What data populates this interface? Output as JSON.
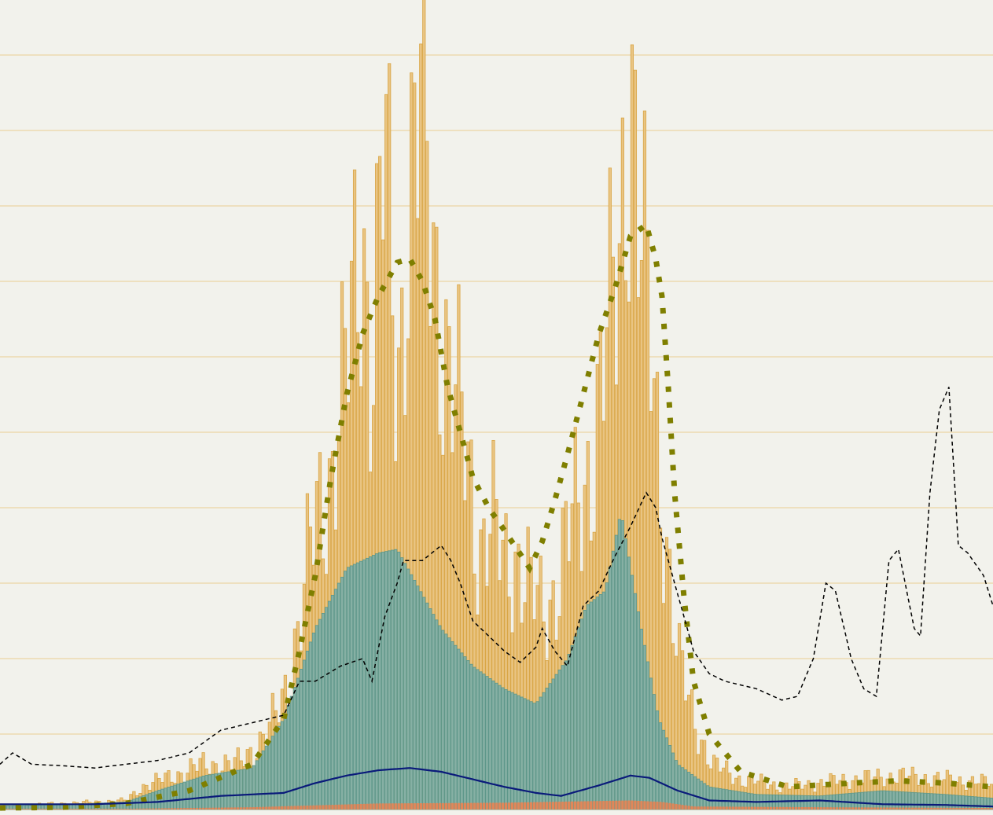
{
  "chart_data": {
    "type": "bar",
    "title": "",
    "xlabel": "",
    "ylabel": "",
    "ylim": [
      0,
      1050
    ],
    "xlim": [
      0,
      315
    ],
    "grid": true,
    "gridlines_y": [
      100,
      200,
      300,
      400,
      500,
      600,
      700,
      800,
      900,
      1000
    ],
    "colors": {
      "background": "#f2f2ec",
      "grid": "#ecd9b0",
      "gold_bars": "#e9c482",
      "gold_bars_edge": "#d9a647",
      "teal_bars": "#86b0a4",
      "teal_bars_edge": "#5e978a",
      "orange_bars": "#e0875a",
      "olive_dotted": "#7f7f00",
      "navy_line": "#0a1a7a",
      "black_dashed": "#000000"
    },
    "series": [
      {
        "kind": "bars",
        "color_key": "gold_bars",
        "points": [
          [
            0,
            5
          ],
          [
            20,
            8
          ],
          [
            40,
            12
          ],
          [
            45,
            30
          ],
          [
            55,
            45
          ],
          [
            65,
            60
          ],
          [
            75,
            60
          ],
          [
            80,
            80
          ],
          [
            85,
            100
          ],
          [
            90,
            150
          ],
          [
            95,
            250
          ],
          [
            100,
            380
          ],
          [
            105,
            450
          ],
          [
            110,
            580
          ],
          [
            115,
            780
          ],
          [
            118,
            580
          ],
          [
            122,
            880
          ],
          [
            126,
            560
          ],
          [
            130,
            820
          ],
          [
            134,
            940
          ],
          [
            137,
            760
          ],
          [
            140,
            650
          ],
          [
            144,
            550
          ],
          [
            148,
            470
          ],
          [
            152,
            350
          ],
          [
            156,
            380
          ],
          [
            160,
            320
          ],
          [
            164,
            340
          ],
          [
            168,
            290
          ],
          [
            172,
            260
          ],
          [
            176,
            290
          ],
          [
            180,
            360
          ],
          [
            184,
            400
          ],
          [
            188,
            480
          ],
          [
            192,
            600
          ],
          [
            196,
            700
          ],
          [
            200,
            1000
          ],
          [
            203,
            760
          ],
          [
            206,
            640
          ],
          [
            209,
            460
          ],
          [
            212,
            340
          ],
          [
            215,
            200
          ],
          [
            220,
            120
          ],
          [
            226,
            60
          ],
          [
            235,
            40
          ],
          [
            250,
            30
          ],
          [
            270,
            40
          ],
          [
            285,
            45
          ],
          [
            300,
            40
          ],
          [
            315,
            35
          ]
        ]
      },
      {
        "kind": "bars",
        "color_key": "teal_bars",
        "points": [
          [
            0,
            5
          ],
          [
            20,
            6
          ],
          [
            40,
            10
          ],
          [
            50,
            25
          ],
          [
            65,
            45
          ],
          [
            80,
            55
          ],
          [
            90,
            120
          ],
          [
            100,
            240
          ],
          [
            110,
            320
          ],
          [
            120,
            340
          ],
          [
            126,
            345
          ],
          [
            132,
            300
          ],
          [
            140,
            240
          ],
          [
            150,
            190
          ],
          [
            160,
            160
          ],
          [
            170,
            140
          ],
          [
            175,
            170
          ],
          [
            180,
            200
          ],
          [
            186,
            270
          ],
          [
            192,
            290
          ],
          [
            197,
            395
          ],
          [
            203,
            250
          ],
          [
            209,
            120
          ],
          [
            215,
            60
          ],
          [
            225,
            30
          ],
          [
            240,
            20
          ],
          [
            260,
            18
          ],
          [
            280,
            25
          ],
          [
            300,
            20
          ],
          [
            315,
            15
          ]
        ]
      },
      {
        "kind": "bars",
        "color_key": "orange_bars",
        "points": [
          [
            0,
            1
          ],
          [
            40,
            1
          ],
          [
            80,
            3
          ],
          [
            120,
            8
          ],
          [
            160,
            9
          ],
          [
            200,
            12
          ],
          [
            210,
            10
          ],
          [
            220,
            4
          ],
          [
            260,
            3
          ],
          [
            315,
            2
          ]
        ]
      },
      {
        "kind": "dotted",
        "color_key": "olive_dotted",
        "points": [
          [
            0,
            2
          ],
          [
            20,
            3
          ],
          [
            40,
            8
          ],
          [
            60,
            25
          ],
          [
            80,
            60
          ],
          [
            90,
            120
          ],
          [
            95,
            210
          ],
          [
            100,
            310
          ],
          [
            105,
            440
          ],
          [
            110,
            550
          ],
          [
            115,
            630
          ],
          [
            120,
            680
          ],
          [
            126,
            725
          ],
          [
            130,
            730
          ],
          [
            134,
            700
          ],
          [
            138,
            650
          ],
          [
            142,
            560
          ],
          [
            146,
            500
          ],
          [
            150,
            440
          ],
          [
            155,
            400
          ],
          [
            160,
            370
          ],
          [
            164,
            345
          ],
          [
            168,
            320
          ],
          [
            172,
            355
          ],
          [
            176,
            410
          ],
          [
            180,
            470
          ],
          [
            185,
            550
          ],
          [
            190,
            630
          ],
          [
            195,
            690
          ],
          [
            200,
            760
          ],
          [
            205,
            775
          ],
          [
            208,
            730
          ],
          [
            210,
            680
          ],
          [
            212,
            560
          ],
          [
            214,
            420
          ],
          [
            217,
            280
          ],
          [
            220,
            170
          ],
          [
            225,
            100
          ],
          [
            235,
            50
          ],
          [
            250,
            30
          ],
          [
            270,
            35
          ],
          [
            285,
            38
          ],
          [
            300,
            35
          ],
          [
            315,
            30
          ]
        ]
      },
      {
        "kind": "line",
        "color_key": "navy_line",
        "points": [
          [
            0,
            7
          ],
          [
            30,
            7
          ],
          [
            50,
            10
          ],
          [
            70,
            18
          ],
          [
            90,
            22
          ],
          [
            100,
            35
          ],
          [
            110,
            45
          ],
          [
            120,
            52
          ],
          [
            130,
            55
          ],
          [
            140,
            50
          ],
          [
            150,
            40
          ],
          [
            160,
            30
          ],
          [
            170,
            22
          ],
          [
            178,
            18
          ],
          [
            190,
            32
          ],
          [
            200,
            45
          ],
          [
            206,
            42
          ],
          [
            215,
            25
          ],
          [
            225,
            12
          ],
          [
            240,
            10
          ],
          [
            260,
            12
          ],
          [
            280,
            7
          ],
          [
            300,
            6
          ],
          [
            315,
            4
          ]
        ]
      },
      {
        "kind": "dashed",
        "color_key": "black_dashed",
        "points": [
          [
            0,
            60
          ],
          [
            4,
            75
          ],
          [
            10,
            60
          ],
          [
            20,
            58
          ],
          [
            30,
            55
          ],
          [
            40,
            60
          ],
          [
            50,
            65
          ],
          [
            60,
            75
          ],
          [
            70,
            105
          ],
          [
            80,
            115
          ],
          [
            90,
            125
          ],
          [
            95,
            170
          ],
          [
            100,
            170
          ],
          [
            108,
            190
          ],
          [
            115,
            200
          ],
          [
            118,
            170
          ],
          [
            122,
            255
          ],
          [
            126,
            300
          ],
          [
            128,
            330
          ],
          [
            134,
            330
          ],
          [
            140,
            350
          ],
          [
            143,
            330
          ],
          [
            146,
            300
          ],
          [
            150,
            250
          ],
          [
            155,
            230
          ],
          [
            160,
            210
          ],
          [
            165,
            195
          ],
          [
            170,
            215
          ],
          [
            172,
            240
          ],
          [
            176,
            210
          ],
          [
            180,
            190
          ],
          [
            185,
            270
          ],
          [
            190,
            290
          ],
          [
            195,
            335
          ],
          [
            200,
            375
          ],
          [
            205,
            420
          ],
          [
            208,
            400
          ],
          [
            210,
            360
          ],
          [
            214,
            300
          ],
          [
            220,
            210
          ],
          [
            225,
            180
          ],
          [
            230,
            170
          ],
          [
            240,
            160
          ],
          [
            248,
            145
          ],
          [
            253,
            150
          ],
          [
            258,
            200
          ],
          [
            262,
            300
          ],
          [
            265,
            290
          ],
          [
            270,
            200
          ],
          [
            274,
            160
          ],
          [
            278,
            150
          ],
          [
            282,
            330
          ],
          [
            285,
            345
          ],
          [
            290,
            240
          ],
          [
            292,
            230
          ],
          [
            295,
            420
          ],
          [
            298,
            530
          ],
          [
            301,
            560
          ],
          [
            304,
            350
          ],
          [
            307,
            340
          ],
          [
            312,
            310
          ],
          [
            315,
            270
          ]
        ]
      }
    ]
  }
}
